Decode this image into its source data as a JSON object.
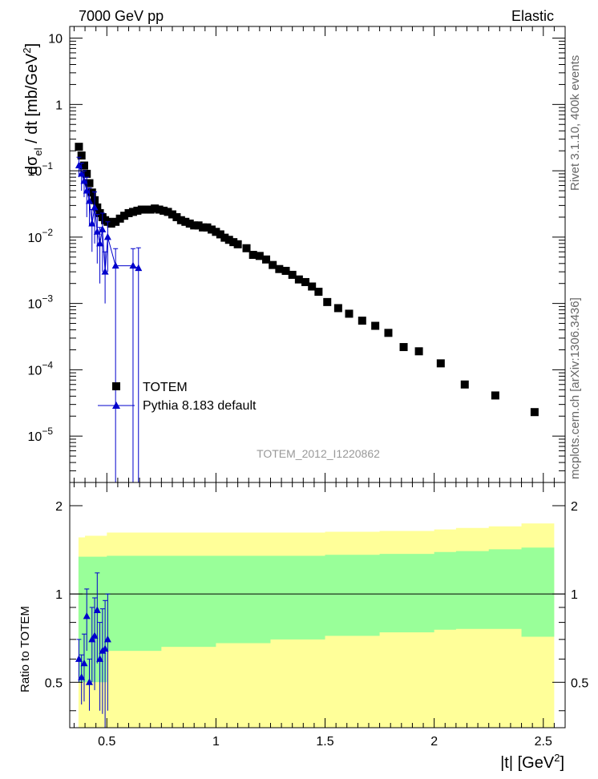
{
  "header": {
    "left": "7000 GeV pp",
    "right": "Elastic"
  },
  "side_labels": {
    "rivet": "Rivet 3.1.10,  400k events",
    "mcplots": "mcplots.cern.ch [arXiv:1306.3436]"
  },
  "top_panel": {
    "ylabel_parts": {
      "d": "d",
      "sigma": "σ",
      "sub": "el",
      "mid": " / dt [mb/GeV",
      "sup": "2",
      "end": "]"
    },
    "yticks": [
      "10^-5",
      "10^-4",
      "10^-3",
      "10^-2",
      "10^-1",
      "1",
      "10"
    ],
    "analysis_id": "TOTEM_2012_I1220862"
  },
  "bottom_panel": {
    "ylabel": "Ratio to TOTEM",
    "yticks": [
      "0.5",
      "1",
      "2"
    ]
  },
  "xaxis": {
    "ticks": [
      "0.5",
      "1",
      "1.5",
      "2",
      "2.5"
    ],
    "label_main": "|t| [GeV",
    "label_sup": "2",
    "label_end": "]"
  },
  "legend": {
    "data": "TOTEM",
    "mc": "Pythia 8.183 default"
  },
  "colors": {
    "data": "#000000",
    "mc": "#0000cc",
    "band_inner": "#99ff99",
    "band_outer": "#ffff99"
  },
  "chart_data": {
    "type": "scatter",
    "xlim": [
      0.33,
      2.6
    ],
    "ylim_top": [
      2e-06,
      15
    ],
    "ylim_ratio": [
      0.35,
      2.4
    ],
    "log_y": true,
    "series": [
      {
        "name": "TOTEM",
        "x": [
          0.372,
          0.384,
          0.396,
          0.408,
          0.42,
          0.432,
          0.444,
          0.456,
          0.468,
          0.48,
          0.492,
          0.504,
          0.52,
          0.54,
          0.56,
          0.58,
          0.6,
          0.62,
          0.64,
          0.66,
          0.68,
          0.7,
          0.72,
          0.74,
          0.76,
          0.78,
          0.8,
          0.82,
          0.84,
          0.86,
          0.88,
          0.9,
          0.92,
          0.94,
          0.96,
          0.98,
          1.0,
          1.02,
          1.04,
          1.06,
          1.08,
          1.1,
          1.14,
          1.17,
          1.2,
          1.23,
          1.26,
          1.29,
          1.32,
          1.35,
          1.38,
          1.41,
          1.44,
          1.47,
          1.51,
          1.56,
          1.61,
          1.67,
          1.73,
          1.79,
          1.86,
          1.93,
          2.03,
          2.14,
          2.28,
          2.46
        ],
        "y": [
          0.23,
          0.17,
          0.12,
          0.09,
          0.065,
          0.047,
          0.036,
          0.028,
          0.023,
          0.02,
          0.018,
          0.017,
          0.016,
          0.017,
          0.019,
          0.021,
          0.023,
          0.024,
          0.025,
          0.026,
          0.026,
          0.026,
          0.027,
          0.026,
          0.025,
          0.024,
          0.022,
          0.02,
          0.018,
          0.017,
          0.016,
          0.015,
          0.015,
          0.014,
          0.014,
          0.013,
          0.012,
          0.011,
          0.0098,
          0.0091,
          0.0084,
          0.0078,
          0.0068,
          0.0054,
          0.0052,
          0.0046,
          0.0038,
          0.0033,
          0.0031,
          0.0027,
          0.0023,
          0.0021,
          0.0018,
          0.0015,
          0.00105,
          0.00085,
          0.0007,
          0.00055,
          0.00046,
          0.00036,
          0.00022,
          0.00019,
          0.000125,
          6e-05,
          4.1e-05,
          2.3e-05
        ]
      },
      {
        "name": "Pythia 8.183 default",
        "x": [
          0.372,
          0.384,
          0.396,
          0.408,
          0.42,
          0.432,
          0.444,
          0.456,
          0.468,
          0.48,
          0.492,
          0.504,
          0.54,
          0.62,
          0.645
        ],
        "y": [
          0.12,
          0.09,
          0.07,
          0.05,
          0.035,
          0.016,
          0.028,
          0.012,
          0.008,
          0.013,
          0.003,
          0.01,
          0.0037,
          0.0037,
          0.0034
        ],
        "yerr_low": [
          0.04,
          0.04,
          0.03,
          0.03,
          0.02,
          0.01,
          0.02,
          0.008,
          0.006,
          0.01,
          0.002,
          0.007,
          0.0037,
          0.0037,
          0.0034
        ],
        "yerr_high": [
          0.04,
          0.04,
          0.03,
          0.03,
          0.02,
          0.01,
          0.02,
          0.01,
          0.006,
          0.01,
          0.003,
          0.007,
          0.003,
          0.003,
          0.0035
        ]
      }
    ],
    "ratio": {
      "band_x": [
        0.37,
        0.4,
        0.5,
        0.75,
        1.0,
        1.25,
        1.5,
        1.75,
        2.0,
        2.1,
        2.25,
        2.4,
        2.55
      ],
      "inner_low": [
        0.5,
        0.5,
        0.64,
        0.66,
        0.68,
        0.7,
        0.72,
        0.74,
        0.755,
        0.76,
        0.76,
        0.715,
        0.715
      ],
      "inner_high": [
        1.34,
        1.34,
        1.35,
        1.35,
        1.35,
        1.35,
        1.36,
        1.37,
        1.39,
        1.4,
        1.42,
        1.44,
        1.44
      ],
      "outer_low": [
        0.3,
        0.3,
        0.3,
        0.3,
        0.3,
        0.3,
        0.3,
        0.3,
        0.3,
        0.3,
        0.3,
        0.3,
        0.3
      ],
      "outer_high": [
        1.56,
        1.58,
        1.62,
        1.62,
        1.62,
        1.62,
        1.63,
        1.64,
        1.66,
        1.68,
        1.7,
        1.74,
        1.74
      ],
      "mc_x": [
        0.372,
        0.384,
        0.396,
        0.408,
        0.42,
        0.432,
        0.444,
        0.456,
        0.468,
        0.48,
        0.492,
        0.504
      ],
      "mc_y": [
        0.6,
        0.52,
        0.58,
        0.84,
        0.5,
        0.7,
        0.72,
        0.88,
        0.6,
        0.64,
        0.65,
        0.7
      ],
      "mc_err": [
        0.1,
        0.1,
        0.15,
        0.2,
        0.1,
        0.2,
        0.25,
        0.3,
        0.2,
        0.25,
        0.3,
        0.3
      ]
    }
  }
}
